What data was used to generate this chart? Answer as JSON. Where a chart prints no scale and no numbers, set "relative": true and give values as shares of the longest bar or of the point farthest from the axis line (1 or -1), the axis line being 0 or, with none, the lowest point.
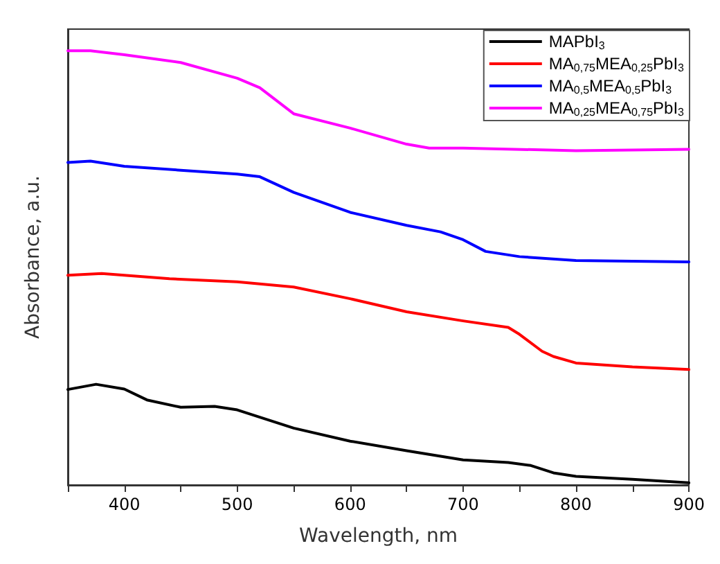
{
  "chart_data": {
    "type": "line",
    "xlabel": "Wavelength, nm",
    "ylabel": "Absorbance, a.u.",
    "relative": true,
    "xlim": [
      350,
      900
    ],
    "xticks": [
      {
        "value": 350,
        "label": null
      },
      400,
      {
        "value": 450,
        "label": null
      },
      500,
      {
        "value": 550,
        "label": null
      },
      600,
      {
        "value": 650,
        "label": null
      },
      700,
      {
        "value": 750,
        "label": null
      },
      800,
      {
        "value": 850,
        "label": null
      },
      900
    ],
    "grid": false,
    "legend": "top right",
    "marker": "none",
    "line_style": "solid",
    "series": [
      {
        "name": "MAPbI$_{3}$",
        "color": "#000000",
        "x": [
          350,
          375,
          400,
          420,
          450,
          480,
          500,
          550,
          600,
          650,
          700,
          740,
          760,
          780,
          800,
          850,
          900
        ],
        "values": [
          0.22,
          0.232,
          0.221,
          0.196,
          0.179,
          0.181,
          0.173,
          0.131,
          0.101,
          0.079,
          0.058,
          0.052,
          0.045,
          0.028,
          0.02,
          0.013,
          0.005
        ]
      },
      {
        "name": "MA$_{0,75}$MEA$_{0,25}$PbI$_{3}$",
        "color": "#ff0000",
        "x": [
          350,
          380,
          400,
          440,
          500,
          550,
          600,
          650,
          700,
          740,
          750,
          770,
          780,
          800,
          850,
          900
        ],
        "values": [
          0.483,
          0.487,
          0.483,
          0.475,
          0.468,
          0.456,
          0.429,
          0.399,
          0.378,
          0.363,
          0.347,
          0.308,
          0.296,
          0.281,
          0.272,
          0.266
        ]
      },
      {
        "name": "MA$_{0,5}$MEA$_{0,5}$PbI$_{3}$",
        "color": "#0000ff",
        "x": [
          350,
          370,
          400,
          450,
          500,
          520,
          550,
          600,
          650,
          680,
          700,
          720,
          750,
          800,
          900
        ],
        "values": [
          0.743,
          0.746,
          0.734,
          0.725,
          0.716,
          0.71,
          0.674,
          0.628,
          0.598,
          0.583,
          0.565,
          0.538,
          0.526,
          0.517,
          0.514
        ]
      },
      {
        "name": "MA$_{0,25}$MEA$_{0,75}$PbI$_{3}$",
        "color": "#ff00ff",
        "x": [
          350,
          370,
          400,
          450,
          500,
          520,
          550,
          600,
          650,
          670,
          700,
          800,
          900
        ],
        "values": [
          1.0,
          1.0,
          0.991,
          0.973,
          0.937,
          0.915,
          0.855,
          0.822,
          0.785,
          0.776,
          0.776,
          0.77,
          0.773
        ]
      }
    ]
  }
}
